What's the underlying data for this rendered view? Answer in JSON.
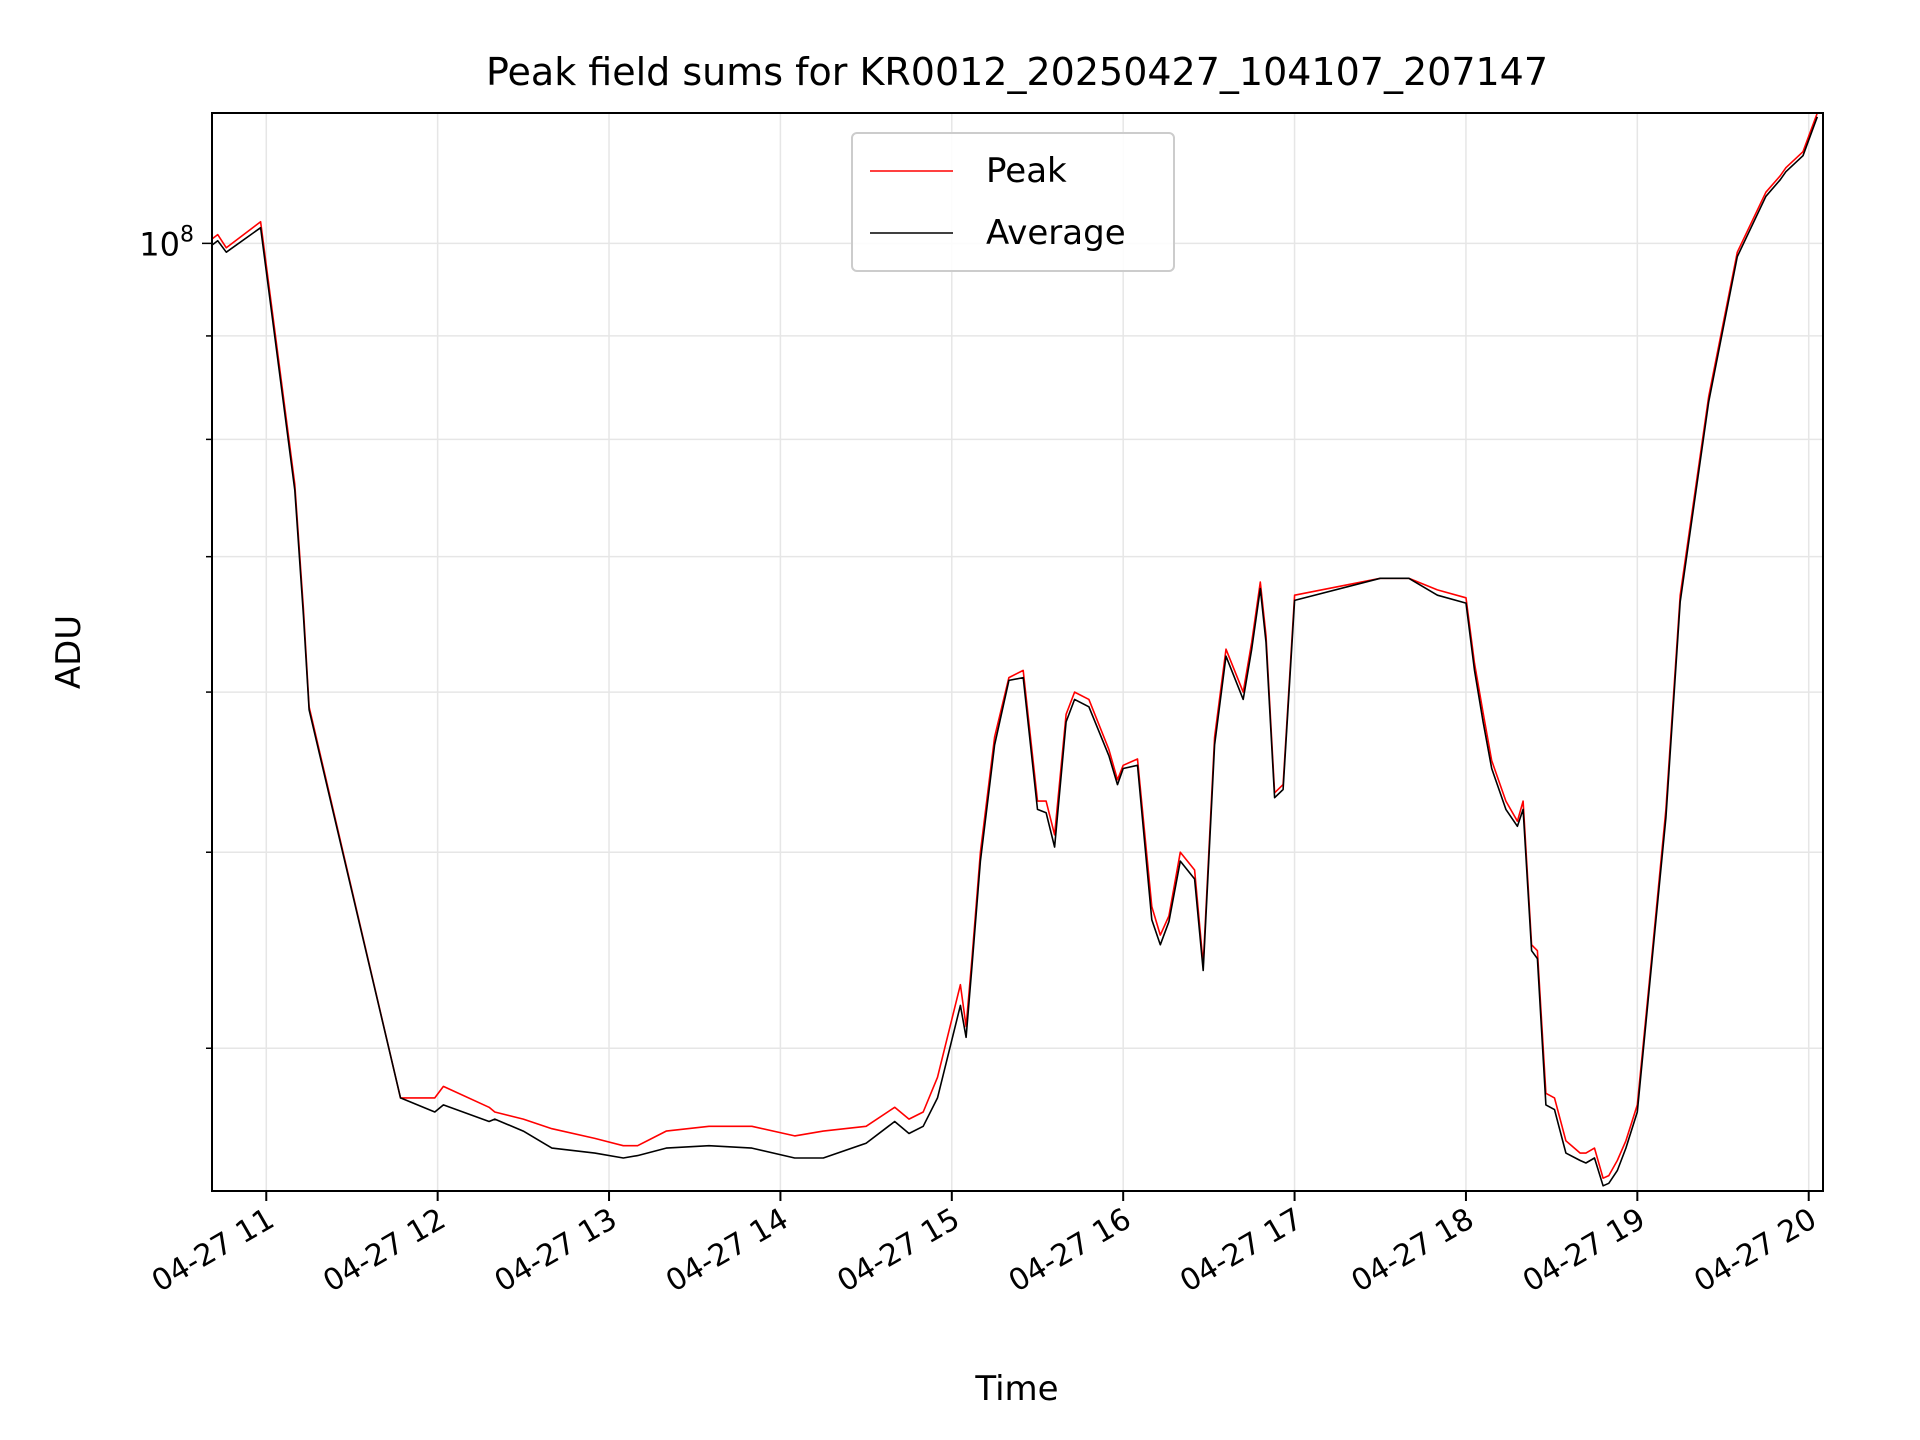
{
  "chart_data": {
    "type": "line",
    "title": "Peak field sums for KR0012_20250427_104107_207147",
    "xlabel": "Time",
    "ylabel": "ADU",
    "y_scale": "log",
    "ylim": [
      34000000,
      116000000
    ],
    "xlim": [
      "2025-04-27 10:41",
      "2025-04-27 20:05"
    ],
    "grid": true,
    "legend_position": "top-center",
    "x_ticks": [
      {
        "t": "2025-04-27 11:00",
        "label": "04-27 11"
      },
      {
        "t": "2025-04-27 12:00",
        "label": "04-27 12"
      },
      {
        "t": "2025-04-27 13:00",
        "label": "04-27 13"
      },
      {
        "t": "2025-04-27 14:00",
        "label": "04-27 14"
      },
      {
        "t": "2025-04-27 15:00",
        "label": "04-27 15"
      },
      {
        "t": "2025-04-27 16:00",
        "label": "04-27 16"
      },
      {
        "t": "2025-04-27 17:00",
        "label": "04-27 17"
      },
      {
        "t": "2025-04-27 18:00",
        "label": "04-27 18"
      },
      {
        "t": "2025-04-27 19:00",
        "label": "04-27 19"
      },
      {
        "t": "2025-04-27 20:00",
        "label": "04-27 20"
      }
    ],
    "y_ticks": [
      {
        "value": 100000000,
        "label_base": "10",
        "label_exp": "8"
      }
    ],
    "series": [
      {
        "name": "Peak",
        "color": "#ff0000",
        "x": [
          "2025-04-27 10:41",
          "2025-04-27 10:43",
          "2025-04-27 10:46",
          "2025-04-27 10:58",
          "2025-04-27 11:10",
          "2025-04-27 11:13",
          "2025-04-27 11:15",
          "2025-04-27 11:47",
          "2025-04-27 11:59",
          "2025-04-27 12:02",
          "2025-04-27 12:18",
          "2025-04-27 12:20",
          "2025-04-27 12:30",
          "2025-04-27 12:40",
          "2025-04-27 12:55",
          "2025-04-27 13:05",
          "2025-04-27 13:10",
          "2025-04-27 13:20",
          "2025-04-27 13:35",
          "2025-04-27 13:50",
          "2025-04-27 14:05",
          "2025-04-27 14:15",
          "2025-04-27 14:30",
          "2025-04-27 14:40",
          "2025-04-27 14:45",
          "2025-04-27 14:50",
          "2025-04-27 14:55",
          "2025-04-27 15:03",
          "2025-04-27 15:05",
          "2025-04-27 15:07",
          "2025-04-27 15:10",
          "2025-04-27 15:15",
          "2025-04-27 15:20",
          "2025-04-27 15:25",
          "2025-04-27 15:30",
          "2025-04-27 15:33",
          "2025-04-27 15:36",
          "2025-04-27 15:40",
          "2025-04-27 15:43",
          "2025-04-27 15:48",
          "2025-04-27 15:55",
          "2025-04-27 15:58",
          "2025-04-27 16:00",
          "2025-04-27 16:05",
          "2025-04-27 16:10",
          "2025-04-27 16:13",
          "2025-04-27 16:16",
          "2025-04-27 16:20",
          "2025-04-27 16:25",
          "2025-04-27 16:28",
          "2025-04-27 16:32",
          "2025-04-27 16:36",
          "2025-04-27 16:42",
          "2025-04-27 16:45",
          "2025-04-27 16:48",
          "2025-04-27 16:50",
          "2025-04-27 16:53",
          "2025-04-27 16:56",
          "2025-04-27 17:00",
          "2025-04-27 17:30",
          "2025-04-27 17:40",
          "2025-04-27 17:50",
          "2025-04-27 18:00",
          "2025-04-27 18:03",
          "2025-04-27 18:06",
          "2025-04-27 18:09",
          "2025-04-27 18:14",
          "2025-04-27 18:18",
          "2025-04-27 18:20",
          "2025-04-27 18:23",
          "2025-04-27 18:25",
          "2025-04-27 18:28",
          "2025-04-27 18:31",
          "2025-04-27 18:35",
          "2025-04-27 18:40",
          "2025-04-27 18:42",
          "2025-04-27 18:45",
          "2025-04-27 18:48",
          "2025-04-27 18:50",
          "2025-04-27 18:53",
          "2025-04-27 18:56",
          "2025-04-27 19:00",
          "2025-04-27 19:05",
          "2025-04-27 19:10",
          "2025-04-27 19:15",
          "2025-04-27 19:25",
          "2025-04-27 19:35",
          "2025-04-27 19:45",
          "2025-04-27 19:50",
          "2025-04-27 19:52",
          "2025-04-27 19:58",
          "2025-04-27 20:03"
        ],
        "values": [
          100500000,
          101000000,
          99500000,
          102500000,
          76000000,
          66000000,
          59000000,
          37800000,
          37800000,
          38300000,
          37400000,
          37200000,
          36900000,
          36500000,
          36100000,
          35800000,
          35800000,
          36400000,
          36600000,
          36600000,
          36200000,
          36400000,
          36600000,
          37400000,
          36900000,
          37200000,
          38700000,
          43000000,
          41000000,
          44200000,
          50000000,
          57000000,
          61000000,
          61500000,
          53000000,
          53000000,
          51000000,
          58500000,
          60000000,
          59500000,
          56200000,
          54300000,
          55200000,
          55600000,
          47000000,
          45500000,
          46500000,
          50000000,
          49000000,
          44000000,
          57000000,
          63000000,
          60000000,
          63500000,
          68000000,
          64000000,
          53500000,
          54000000,
          67000000,
          68300000,
          68300000,
          67400000,
          66800000,
          62000000,
          58600000,
          55500000,
          53000000,
          51800000,
          53000000,
          45000000,
          44700000,
          38000000,
          37800000,
          36000000,
          35500000,
          35500000,
          35700000,
          34500000,
          34600000,
          35200000,
          36000000,
          37500000,
          44300000,
          52500000,
          67000000,
          84000000,
          99000000,
          106000000,
          108000000,
          109000000,
          111000000,
          116000000
        ]
      },
      {
        "name": "Average",
        "color": "#000000",
        "x": [
          "2025-04-27 10:41",
          "2025-04-27 10:43",
          "2025-04-27 10:46",
          "2025-04-27 10:58",
          "2025-04-27 11:10",
          "2025-04-27 11:13",
          "2025-04-27 11:15",
          "2025-04-27 11:47",
          "2025-04-27 11:59",
          "2025-04-27 12:02",
          "2025-04-27 12:18",
          "2025-04-27 12:20",
          "2025-04-27 12:30",
          "2025-04-27 12:40",
          "2025-04-27 12:55",
          "2025-04-27 13:05",
          "2025-04-27 13:10",
          "2025-04-27 13:20",
          "2025-04-27 13:35",
          "2025-04-27 13:50",
          "2025-04-27 14:05",
          "2025-04-27 14:15",
          "2025-04-27 14:30",
          "2025-04-27 14:40",
          "2025-04-27 14:45",
          "2025-04-27 14:50",
          "2025-04-27 14:55",
          "2025-04-27 15:03",
          "2025-04-27 15:05",
          "2025-04-27 15:07",
          "2025-04-27 15:10",
          "2025-04-27 15:15",
          "2025-04-27 15:20",
          "2025-04-27 15:25",
          "2025-04-27 15:30",
          "2025-04-27 15:33",
          "2025-04-27 15:36",
          "2025-04-27 15:40",
          "2025-04-27 15:43",
          "2025-04-27 15:48",
          "2025-04-27 15:55",
          "2025-04-27 15:58",
          "2025-04-27 16:00",
          "2025-04-27 16:05",
          "2025-04-27 16:10",
          "2025-04-27 16:13",
          "2025-04-27 16:16",
          "2025-04-27 16:20",
          "2025-04-27 16:25",
          "2025-04-27 16:28",
          "2025-04-27 16:32",
          "2025-04-27 16:36",
          "2025-04-27 16:42",
          "2025-04-27 16:45",
          "2025-04-27 16:48",
          "2025-04-27 16:50",
          "2025-04-27 16:53",
          "2025-04-27 16:56",
          "2025-04-27 17:00",
          "2025-04-27 17:30",
          "2025-04-27 17:40",
          "2025-04-27 17:50",
          "2025-04-27 18:00",
          "2025-04-27 18:03",
          "2025-04-27 18:06",
          "2025-04-27 18:09",
          "2025-04-27 18:14",
          "2025-04-27 18:18",
          "2025-04-27 18:20",
          "2025-04-27 18:23",
          "2025-04-27 18:25",
          "2025-04-27 18:28",
          "2025-04-27 18:31",
          "2025-04-27 18:35",
          "2025-04-27 18:40",
          "2025-04-27 18:42",
          "2025-04-27 18:45",
          "2025-04-27 18:48",
          "2025-04-27 18:50",
          "2025-04-27 18:53",
          "2025-04-27 18:56",
          "2025-04-27 19:00",
          "2025-04-27 19:05",
          "2025-04-27 19:10",
          "2025-04-27 19:15",
          "2025-04-27 19:25",
          "2025-04-27 19:35",
          "2025-04-27 19:45",
          "2025-04-27 19:50",
          "2025-04-27 19:52",
          "2025-04-27 19:58",
          "2025-04-27 20:03"
        ],
        "values": [
          99800000,
          100300000,
          99000000,
          101800000,
          75500000,
          65500000,
          58800000,
          37800000,
          37200000,
          37500000,
          36800000,
          36900000,
          36400000,
          35700000,
          35500000,
          35300000,
          35400000,
          35700000,
          35800000,
          35700000,
          35300000,
          35300000,
          35900000,
          36800000,
          36300000,
          36600000,
          37800000,
          42000000,
          40500000,
          43800000,
          49500000,
          56500000,
          60800000,
          61000000,
          52500000,
          52300000,
          50300000,
          58000000,
          59500000,
          59000000,
          55800000,
          54000000,
          55000000,
          55200000,
          46300000,
          45000000,
          46200000,
          49500000,
          48500000,
          43700000,
          56500000,
          62500000,
          59500000,
          63000000,
          67500000,
          63500000,
          53200000,
          53700000,
          66600000,
          68300000,
          68300000,
          67000000,
          66400000,
          61500000,
          58000000,
          55000000,
          52500000,
          51500000,
          52500000,
          44700000,
          44300000,
          37500000,
          37300000,
          35500000,
          35200000,
          35100000,
          35300000,
          34200000,
          34300000,
          34800000,
          35700000,
          37200000,
          44000000,
          52000000,
          66500000,
          83500000,
          98500000,
          105500000,
          107500000,
          108500000,
          110500000,
          115500000
        ]
      }
    ]
  }
}
